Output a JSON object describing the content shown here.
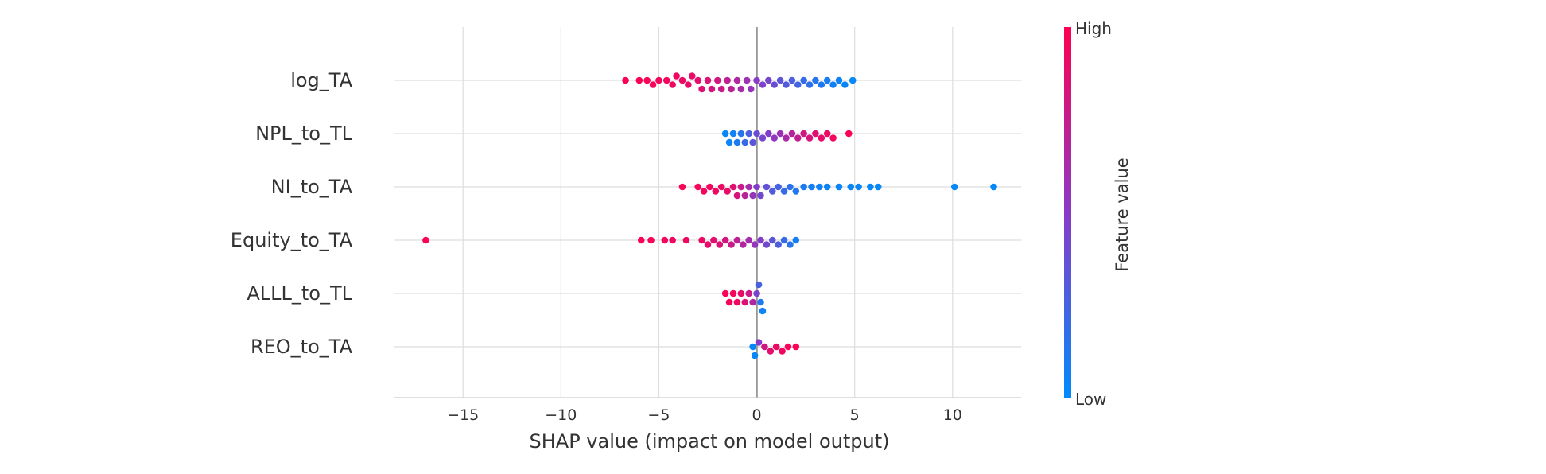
{
  "chart_data": {
    "type": "scatter",
    "subtype": "shap-beeswarm",
    "title": "",
    "xlabel": "SHAP value (impact on model output)",
    "ylabel": "",
    "xlim": [
      -18.5,
      13.5
    ],
    "xticks": [
      {
        "value": -15,
        "label": "−15"
      },
      {
        "value": -10,
        "label": "−10"
      },
      {
        "value": -5,
        "label": "−5"
      },
      {
        "value": 0,
        "label": "0"
      },
      {
        "value": 5,
        "label": "5"
      },
      {
        "value": 10,
        "label": "10"
      }
    ],
    "grid": true,
    "colorbar": {
      "title": "Feature value",
      "high_label": "High",
      "low_label": "Low",
      "high_color": "#ff0051",
      "low_color": "#008bfb"
    },
    "features": [
      {
        "name": "log_TA",
        "points": [
          {
            "x": -6.7,
            "c": 0.98
          },
          {
            "x": -6.0,
            "c": 0.97
          },
          {
            "x": -5.6,
            "c": 0.96
          },
          {
            "x": -5.3,
            "c": 0.96
          },
          {
            "x": -5.0,
            "c": 0.95
          },
          {
            "x": -4.6,
            "c": 0.94
          },
          {
            "x": -4.3,
            "c": 0.93
          },
          {
            "x": -4.1,
            "c": 0.93
          },
          {
            "x": -3.8,
            "c": 0.92
          },
          {
            "x": -3.5,
            "c": 0.9
          },
          {
            "x": -3.3,
            "c": 0.9
          },
          {
            "x": -3.0,
            "c": 0.88
          },
          {
            "x": -2.8,
            "c": 0.86
          },
          {
            "x": -2.5,
            "c": 0.84
          },
          {
            "x": -2.3,
            "c": 0.82
          },
          {
            "x": -2.0,
            "c": 0.8
          },
          {
            "x": -1.8,
            "c": 0.77
          },
          {
            "x": -1.5,
            "c": 0.73
          },
          {
            "x": -1.3,
            "c": 0.7
          },
          {
            "x": -1.0,
            "c": 0.66
          },
          {
            "x": -0.8,
            "c": 0.63
          },
          {
            "x": -0.5,
            "c": 0.58
          },
          {
            "x": -0.3,
            "c": 0.55
          },
          {
            "x": 0.0,
            "c": 0.5
          },
          {
            "x": 0.3,
            "c": 0.46
          },
          {
            "x": 0.6,
            "c": 0.42
          },
          {
            "x": 0.9,
            "c": 0.38
          },
          {
            "x": 1.2,
            "c": 0.34
          },
          {
            "x": 1.5,
            "c": 0.3
          },
          {
            "x": 1.8,
            "c": 0.27
          },
          {
            "x": 2.1,
            "c": 0.24
          },
          {
            "x": 2.4,
            "c": 0.2
          },
          {
            "x": 2.7,
            "c": 0.17
          },
          {
            "x": 3.0,
            "c": 0.14
          },
          {
            "x": 3.3,
            "c": 0.11
          },
          {
            "x": 3.6,
            "c": 0.09
          },
          {
            "x": 3.9,
            "c": 0.07
          },
          {
            "x": 4.2,
            "c": 0.05
          },
          {
            "x": 4.5,
            "c": 0.03
          },
          {
            "x": 4.9,
            "c": 0.02
          }
        ]
      },
      {
        "name": "NPL_to_TL",
        "points": [
          {
            "x": -1.6,
            "c": 0.03
          },
          {
            "x": -1.4,
            "c": 0.04
          },
          {
            "x": -1.2,
            "c": 0.06
          },
          {
            "x": -1.0,
            "c": 0.1
          },
          {
            "x": -0.8,
            "c": 0.14
          },
          {
            "x": -0.6,
            "c": 0.2
          },
          {
            "x": -0.4,
            "c": 0.27
          },
          {
            "x": -0.2,
            "c": 0.33
          },
          {
            "x": 0.0,
            "c": 0.38
          },
          {
            "x": 0.3,
            "c": 0.43
          },
          {
            "x": 0.6,
            "c": 0.48
          },
          {
            "x": 0.9,
            "c": 0.53
          },
          {
            "x": 1.2,
            "c": 0.58
          },
          {
            "x": 1.5,
            "c": 0.63
          },
          {
            "x": 1.8,
            "c": 0.68
          },
          {
            "x": 2.1,
            "c": 0.73
          },
          {
            "x": 2.4,
            "c": 0.78
          },
          {
            "x": 2.7,
            "c": 0.83
          },
          {
            "x": 3.0,
            "c": 0.87
          },
          {
            "x": 3.3,
            "c": 0.9
          },
          {
            "x": 3.6,
            "c": 0.93
          },
          {
            "x": 3.9,
            "c": 0.95
          },
          {
            "x": 4.7,
            "c": 0.98
          }
        ]
      },
      {
        "name": "NI_to_TA",
        "points": [
          {
            "x": -3.8,
            "c": 0.97
          },
          {
            "x": -3.0,
            "c": 0.96
          },
          {
            "x": -2.7,
            "c": 0.95
          },
          {
            "x": -2.4,
            "c": 0.94
          },
          {
            "x": -2.1,
            "c": 0.93
          },
          {
            "x": -1.8,
            "c": 0.92
          },
          {
            "x": -1.5,
            "c": 0.9
          },
          {
            "x": -1.2,
            "c": 0.86
          },
          {
            "x": -1.0,
            "c": 0.82
          },
          {
            "x": -0.8,
            "c": 0.76
          },
          {
            "x": -0.6,
            "c": 0.7
          },
          {
            "x": -0.4,
            "c": 0.62
          },
          {
            "x": -0.2,
            "c": 0.55
          },
          {
            "x": 0.0,
            "c": 0.48
          },
          {
            "x": 0.2,
            "c": 0.42
          },
          {
            "x": 0.5,
            "c": 0.36
          },
          {
            "x": 0.8,
            "c": 0.3
          },
          {
            "x": 1.1,
            "c": 0.25
          },
          {
            "x": 1.4,
            "c": 0.2
          },
          {
            "x": 1.7,
            "c": 0.16
          },
          {
            "x": 2.0,
            "c": 0.12
          },
          {
            "x": 2.4,
            "c": 0.1
          },
          {
            "x": 2.8,
            "c": 0.08
          },
          {
            "x": 3.2,
            "c": 0.06
          },
          {
            "x": 3.6,
            "c": 0.05
          },
          {
            "x": 4.2,
            "c": 0.04
          },
          {
            "x": 4.8,
            "c": 0.03
          },
          {
            "x": 5.2,
            "c": 0.03
          },
          {
            "x": 5.8,
            "c": 0.02
          },
          {
            "x": 6.2,
            "c": 0.02
          },
          {
            "x": 10.1,
            "c": 0.02
          },
          {
            "x": 12.1,
            "c": 0.02
          }
        ]
      },
      {
        "name": "Equity_to_TA",
        "points": [
          {
            "x": -16.9,
            "c": 0.98
          },
          {
            "x": -5.9,
            "c": 0.97
          },
          {
            "x": -5.4,
            "c": 0.96
          },
          {
            "x": -4.7,
            "c": 0.95
          },
          {
            "x": -4.3,
            "c": 0.94
          },
          {
            "x": -3.6,
            "c": 0.93
          },
          {
            "x": -2.8,
            "c": 0.92
          },
          {
            "x": -2.5,
            "c": 0.9
          },
          {
            "x": -2.2,
            "c": 0.88
          },
          {
            "x": -1.9,
            "c": 0.85
          },
          {
            "x": -1.6,
            "c": 0.81
          },
          {
            "x": -1.3,
            "c": 0.77
          },
          {
            "x": -1.0,
            "c": 0.72
          },
          {
            "x": -0.7,
            "c": 0.67
          },
          {
            "x": -0.4,
            "c": 0.61
          },
          {
            "x": -0.1,
            "c": 0.55
          },
          {
            "x": 0.2,
            "c": 0.48
          },
          {
            "x": 0.5,
            "c": 0.41
          },
          {
            "x": 0.8,
            "c": 0.34
          },
          {
            "x": 1.1,
            "c": 0.27
          },
          {
            "x": 1.4,
            "c": 0.2
          },
          {
            "x": 1.7,
            "c": 0.14
          },
          {
            "x": 2.0,
            "c": 0.08
          }
        ]
      },
      {
        "name": "ALLL_to_TL",
        "points": [
          {
            "x": -1.6,
            "c": 0.97
          },
          {
            "x": -1.4,
            "c": 0.96
          },
          {
            "x": -1.2,
            "c": 0.95
          },
          {
            "x": -1.0,
            "c": 0.93
          },
          {
            "x": -0.8,
            "c": 0.9
          },
          {
            "x": -0.6,
            "c": 0.85
          },
          {
            "x": -0.4,
            "c": 0.78
          },
          {
            "x": -0.2,
            "c": 0.65
          },
          {
            "x": 0.0,
            "c": 0.45
          },
          {
            "x": 0.1,
            "c": 0.25
          },
          {
            "x": 0.2,
            "c": 0.12
          },
          {
            "x": 0.3,
            "c": 0.05
          }
        ]
      },
      {
        "name": "REO_to_TA",
        "points": [
          {
            "x": -0.2,
            "c": 0.03
          },
          {
            "x": -0.1,
            "c": 0.03
          },
          {
            "x": 0.1,
            "c": 0.5
          },
          {
            "x": 0.4,
            "c": 0.8
          },
          {
            "x": 0.7,
            "c": 0.88
          },
          {
            "x": 1.0,
            "c": 0.92
          },
          {
            "x": 1.3,
            "c": 0.94
          },
          {
            "x": 1.6,
            "c": 0.96
          },
          {
            "x": 2.0,
            "c": 0.98
          }
        ]
      }
    ]
  }
}
